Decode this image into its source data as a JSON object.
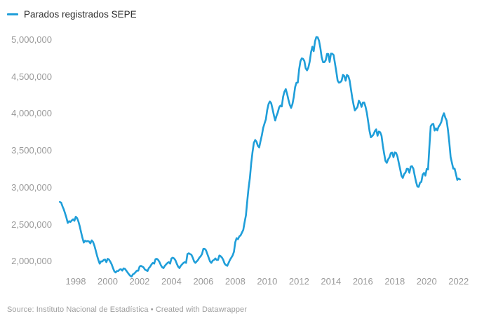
{
  "legend": {
    "label": "Parados registrados SEPE"
  },
  "footer": {
    "source_text": "Source: Instituto Nacional de Estadística • Created with Datawrapper"
  },
  "colors": {
    "line": "#1f9ed9",
    "axis_label": "#9a9a9a",
    "legend_text": "#2f2f2f",
    "source_text": "#9d9d9d",
    "background": "#ffffff"
  },
  "chart_data": {
    "type": "line",
    "title": "",
    "xlabel": "",
    "ylabel": "",
    "grid": false,
    "legend_position": "top-left",
    "xlim": [
      1997.0,
      2022.3
    ],
    "ylim": [
      1750000,
      5100000
    ],
    "x_ticks": [
      1998,
      2000,
      2002,
      2004,
      2006,
      2008,
      2010,
      2012,
      2014,
      2016,
      2018,
      2020,
      2022
    ],
    "y_ticks": [
      {
        "value": 5000000,
        "label": "5,000,000"
      },
      {
        "value": 4500000,
        "label": "4,500,000"
      },
      {
        "value": 4000000,
        "label": "4,000,000"
      },
      {
        "value": 3500000,
        "label": "3,500,000"
      },
      {
        "value": 3000000,
        "label": "3,000,000"
      },
      {
        "value": 2500000,
        "label": "2,500,000"
      },
      {
        "value": 2000000,
        "label": "2,000,000"
      }
    ],
    "series": [
      {
        "name": "Parados registrados SEPE",
        "color": "#1f9ed9",
        "frequency": "monthly",
        "start_year": 1997,
        "start_month": 1,
        "values": [
          2806000,
          2796000,
          2746000,
          2706000,
          2651000,
          2592000,
          2522000,
          2546000,
          2536000,
          2556000,
          2571000,
          2551000,
          2606000,
          2586000,
          2541000,
          2476000,
          2396000,
          2321000,
          2256000,
          2281000,
          2271000,
          2276000,
          2271000,
          2246000,
          2286000,
          2266000,
          2216000,
          2151000,
          2081000,
          2021000,
          1971000,
          2001000,
          2001000,
          2021000,
          2026000,
          1991000,
          2036000,
          2026000,
          1996000,
          1961000,
          1911000,
          1866000,
          1851000,
          1871000,
          1871000,
          1891000,
          1896000,
          1876000,
          1906000,
          1901000,
          1876000,
          1851000,
          1826000,
          1806000,
          1796000,
          1826000,
          1836000,
          1856000,
          1876000,
          1876000,
          1931000,
          1941000,
          1931000,
          1921000,
          1891000,
          1881000,
          1871000,
          1911000,
          1931000,
          1961000,
          1981000,
          1971000,
          2031000,
          2036000,
          2021000,
          1991000,
          1951000,
          1921000,
          1911000,
          1941000,
          1961000,
          1981000,
          1991000,
          1971000,
          2041000,
          2051000,
          2041000,
          2016000,
          1971000,
          1931000,
          1911000,
          1941000,
          1961000,
          1981000,
          1991000,
          1981000,
          2101000,
          2111000,
          2101000,
          2091000,
          2051000,
          2001000,
          1981000,
          2001000,
          2021000,
          2051000,
          2071000,
          2101000,
          2171000,
          2171000,
          2151000,
          2101000,
          2051000,
          2001000,
          1981000,
          2011000,
          2021000,
          2041000,
          2021000,
          2021000,
          2081000,
          2071000,
          2051000,
          2021000,
          1971000,
          1951000,
          1941000,
          1981000,
          2021000,
          2051000,
          2081000,
          2131000,
          2261000,
          2316000,
          2301000,
          2339000,
          2354000,
          2391000,
          2428000,
          2531000,
          2626000,
          2819000,
          2990000,
          3129000,
          3328000,
          3482000,
          3606000,
          3645000,
          3621000,
          3565000,
          3545000,
          3630000,
          3710000,
          3809000,
          3869000,
          3924000,
          4049000,
          4131000,
          4167000,
          4143000,
          4066000,
          3982000,
          3909000,
          3970000,
          4018000,
          4086000,
          4111000,
          4100000,
          4231000,
          4300000,
          4334000,
          4269000,
          4190000,
          4122000,
          4080000,
          4131000,
          4227000,
          4361000,
          4420000,
          4422000,
          4600000,
          4712000,
          4750000,
          4744000,
          4714000,
          4616000,
          4588000,
          4626000,
          4706000,
          4834000,
          4908000,
          4848000,
          4981000,
          5040000,
          5035000,
          4989000,
          4891000,
          4764000,
          4699000,
          4699000,
          4724000,
          4811000,
          4809000,
          4701000,
          4814000,
          4813000,
          4795000,
          4684000,
          4572000,
          4450000,
          4420000,
          4428000,
          4448000,
          4527000,
          4512000,
          4448000,
          4526000,
          4512000,
          4452000,
          4333000,
          4215000,
          4120000,
          4046000,
          4068000,
          4094000,
          4176000,
          4149000,
          4094000,
          4151000,
          4153000,
          4095000,
          4011000,
          3891000,
          3767000,
          3683000,
          3697000,
          3721000,
          3765000,
          3789000,
          3703000,
          3760000,
          3750000,
          3702000,
          3573000,
          3461000,
          3362000,
          3336000,
          3382000,
          3410000,
          3467000,
          3474000,
          3413000,
          3476000,
          3470000,
          3421000,
          3335000,
          3252000,
          3162000,
          3132000,
          3183000,
          3203000,
          3255000,
          3253000,
          3202000,
          3285000,
          3289000,
          3255000,
          3163000,
          3079000,
          3015000,
          3011000,
          3066000,
          3080000,
          3177000,
          3198000,
          3163000,
          3253000,
          3246000,
          3548000,
          3831000,
          3857000,
          3862000,
          3773000,
          3802000,
          3776000,
          3826000,
          3851000,
          3889000,
          3964000,
          4008000,
          3949000,
          3910000,
          3781000,
          3614000,
          3416000,
          3334000,
          3257000,
          3257000,
          3182000,
          3105000,
          3123000,
          3111000
        ]
      }
    ]
  }
}
